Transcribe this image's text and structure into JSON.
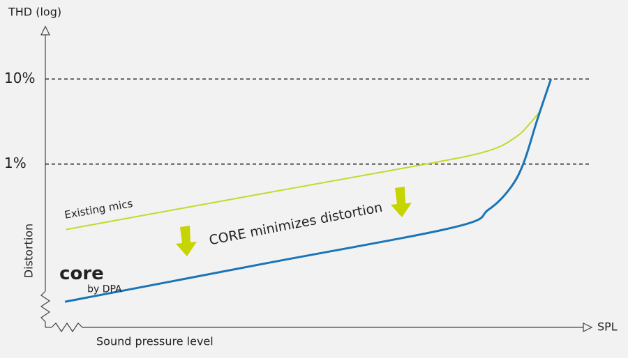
{
  "chart_data": {
    "type": "line",
    "y_axis_title": "THD (log)",
    "y_axis_label": "Distortion",
    "x_axis_label": "Sound pressure level",
    "x_axis_end_label": "SPL",
    "annotation": "CORE minimizes distortion",
    "logo_subtitle": "by DPA",
    "log_scale_y": true,
    "grid": true,
    "xlim": [
      0,
      100
    ],
    "ylim": [
      0.012,
      40
    ],
    "yticks": [
      {
        "value": 1,
        "label": "1%"
      },
      {
        "value": 10,
        "label": "10%"
      }
    ],
    "series": [
      {
        "name": "Existing mics",
        "color": "#c6d82c",
        "x": [
          3.8,
          40,
          70,
          81.4,
          86.5,
          89.1,
          91.0
        ],
        "values": [
          0.17,
          0.45,
          1.0,
          1.43,
          2.09,
          3.04,
          4.27
        ]
      },
      {
        "name": "core",
        "color": "#1a74b6",
        "x": [
          3.6,
          40,
          75,
          81.4,
          85.3,
          87.8,
          90.4,
          92.9
        ],
        "values": [
          0.024,
          0.067,
          0.18,
          0.29,
          0.51,
          1.0,
          3.35,
          10
        ]
      }
    ]
  }
}
